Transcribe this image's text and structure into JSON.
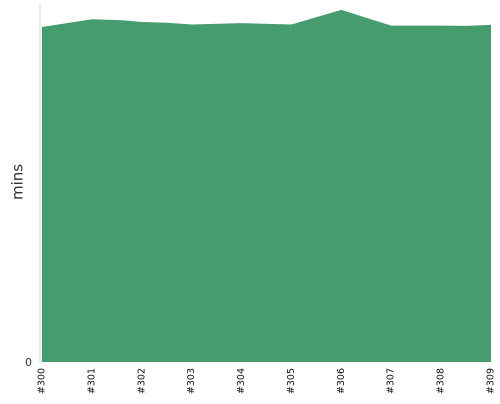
{
  "chart_data": {
    "type": "area",
    "title": "",
    "xlabel": "",
    "ylabel": "mins",
    "y_ticks": [
      "0"
    ],
    "ylim": [
      0,
      100
    ],
    "grid": false,
    "legend": "none",
    "series_color": "#459c6d",
    "axis_color": "#d0d0d0",
    "categories": [
      "#300",
      "#301",
      "#302",
      "#303",
      "#304",
      "#305",
      "#306",
      "#307",
      "#308",
      "#309"
    ],
    "series": [
      {
        "x": [
          0,
          1,
          1.6,
          2,
          2.5,
          3,
          4,
          5,
          6,
          7,
          8,
          8.5,
          9
        ],
        "values": [
          94.1,
          96.3,
          96.0,
          95.5,
          95.3,
          94.8,
          95.2,
          94.8,
          98.9,
          94.5,
          94.5,
          94.4,
          94.7
        ]
      }
    ]
  }
}
